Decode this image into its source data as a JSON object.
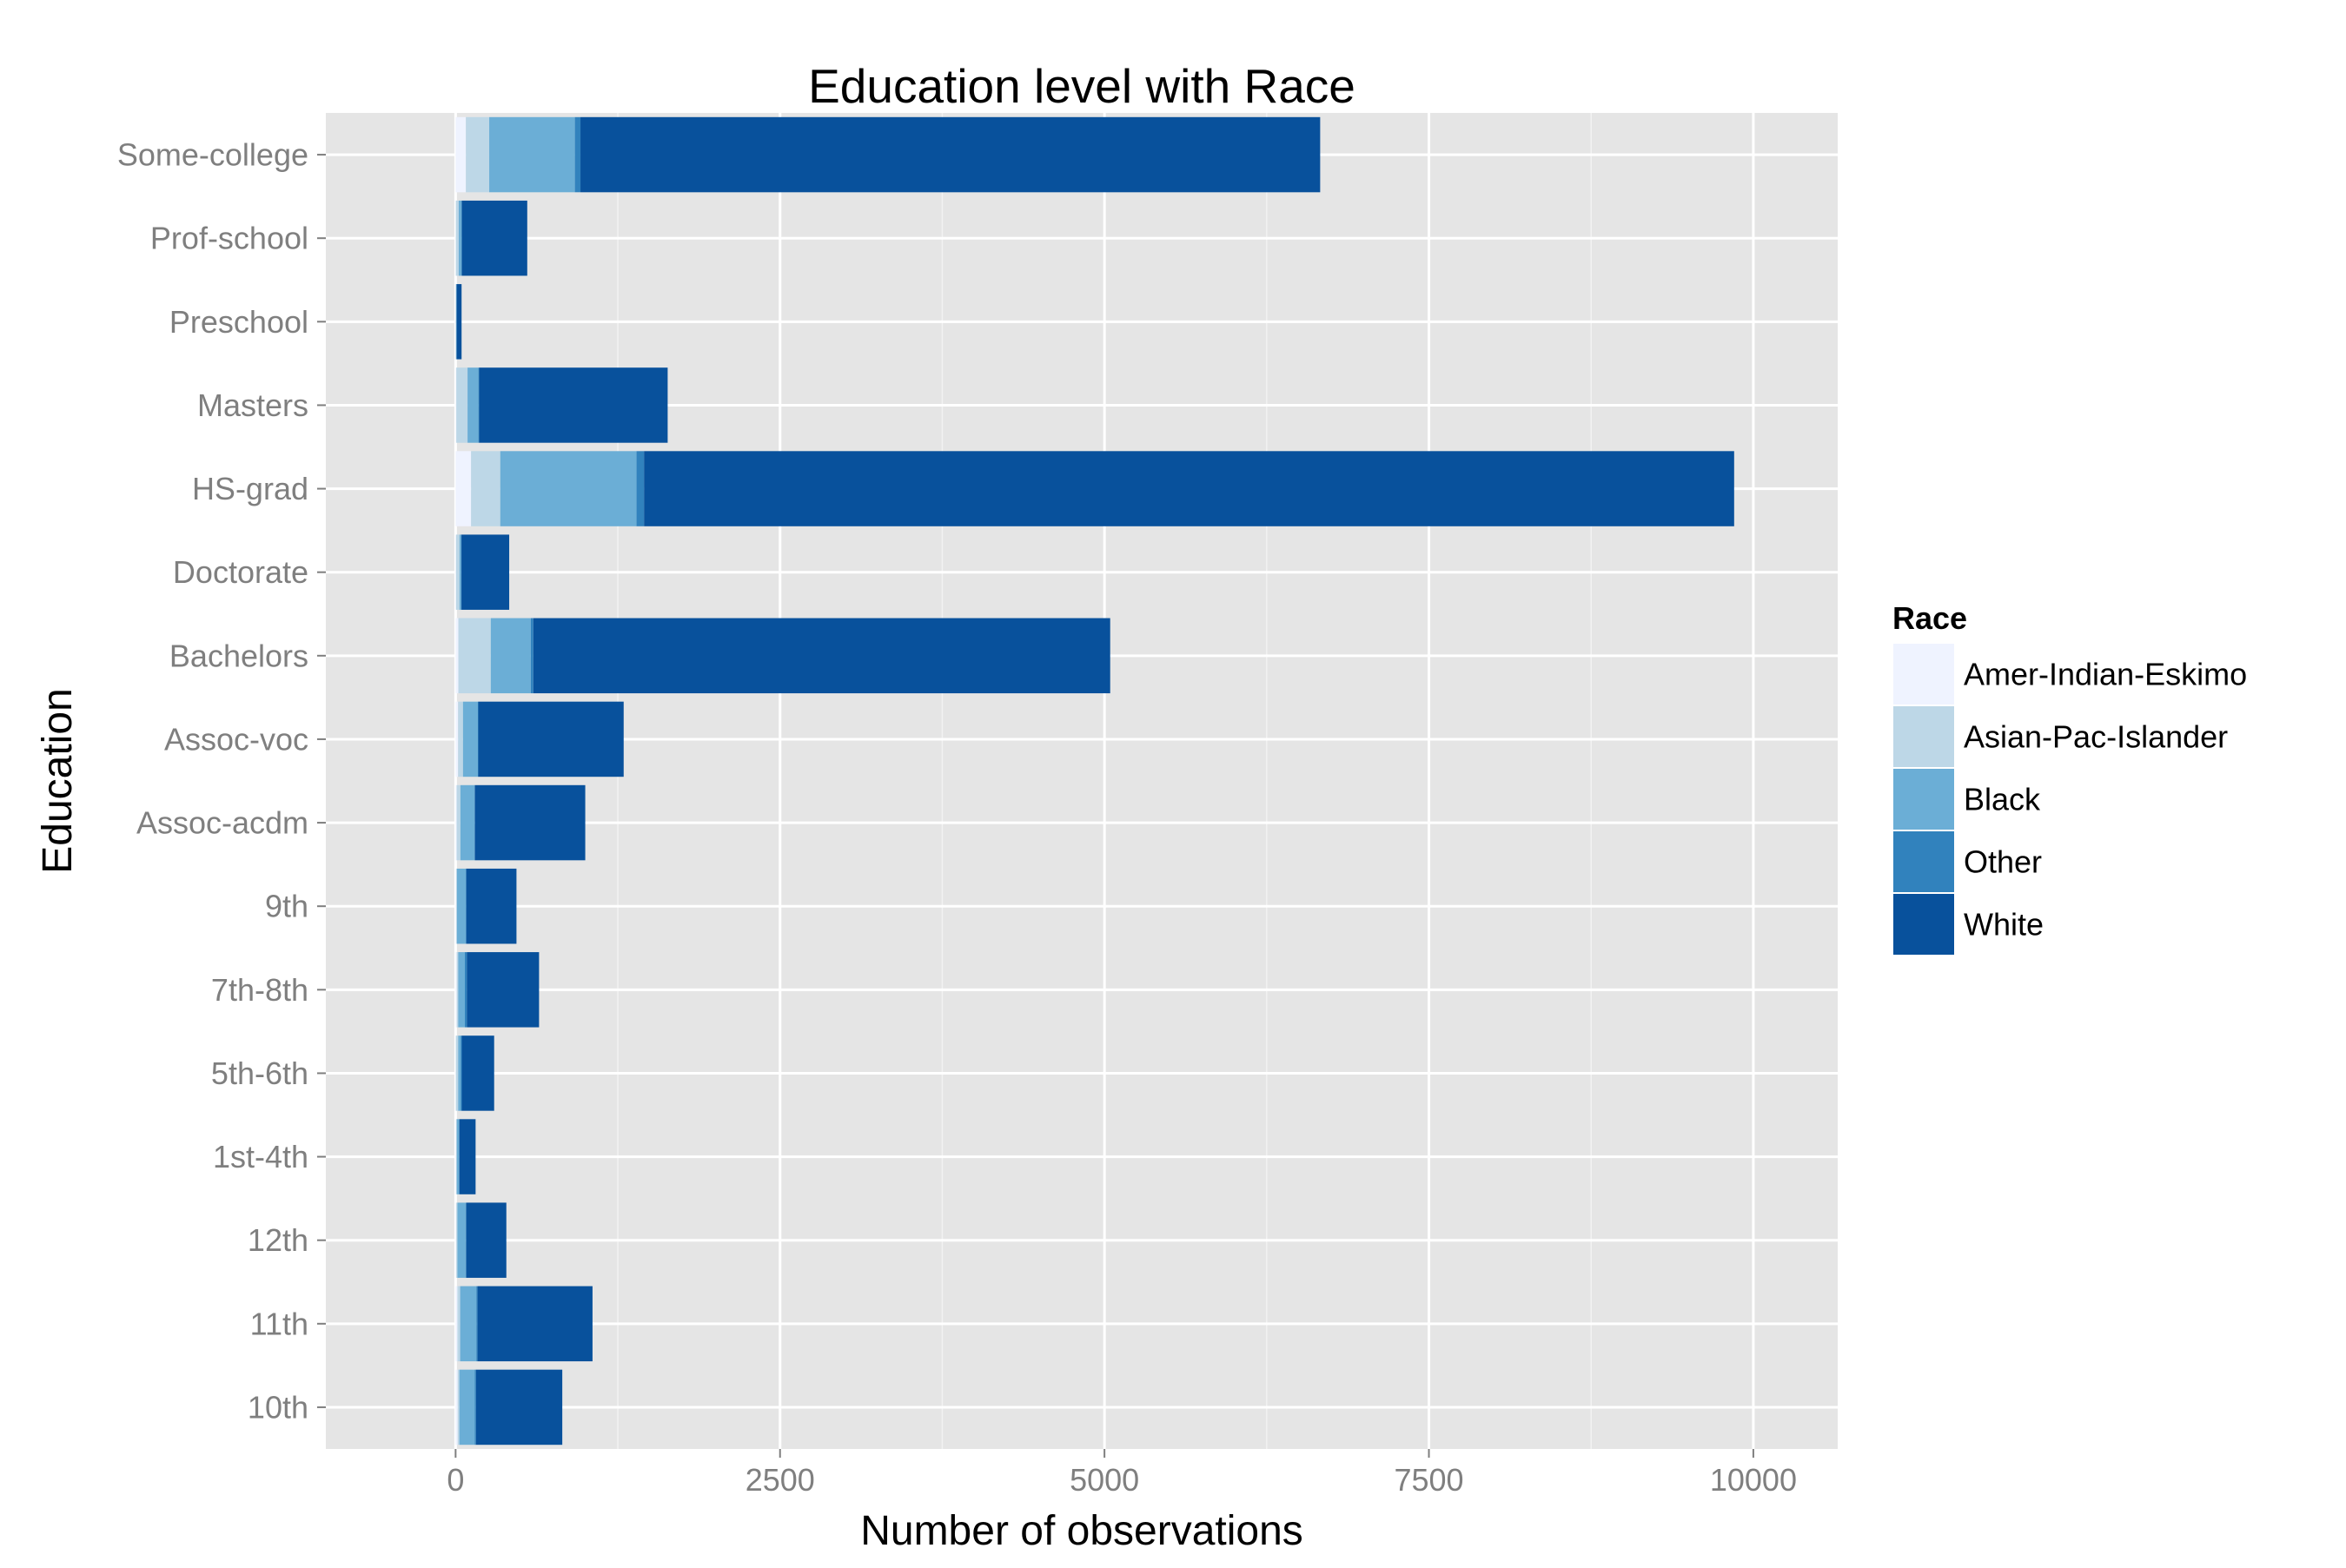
{
  "chart_data": {
    "type": "bar",
    "orientation": "horizontal",
    "stacked": true,
    "title": "Education level with Race",
    "xlabel": "Number of observations",
    "ylabel": "Education",
    "xlim": [
      -1000,
      10650
    ],
    "xticks": [
      0,
      2500,
      5000,
      7500,
      10000
    ],
    "xtick_labels": [
      "0",
      "2500",
      "5000",
      "7500",
      "10000"
    ],
    "grid": true,
    "legend_position": "right",
    "legend_title": "Race",
    "categories": [
      "10th",
      "11th",
      "12th",
      "1st-4th",
      "5th-6th",
      "7th-8th",
      "9th",
      "Assoc-acdm",
      "Assoc-voc",
      "Bachelors",
      "Doctorate",
      "HS-grad",
      "Masters",
      "Preschool",
      "Prof-school",
      "Some-college"
    ],
    "series": [
      {
        "name": "Amer-Indian-Eskimo",
        "color": "#eff3ff",
        "values": [
          16,
          14,
          5,
          4,
          2,
          9,
          5,
          8,
          19,
          21,
          3,
          119,
          5,
          0,
          2,
          79
        ]
      },
      {
        "name": "Asian-Pac-Islander",
        "color": "#bdd7e7",
        "values": [
          13,
          21,
          9,
          5,
          18,
          11,
          5,
          29,
          38,
          250,
          27,
          225,
          87,
          6,
          22,
          180
        ]
      },
      {
        "name": "Black",
        "color": "#6baed6",
        "values": [
          119,
          125,
          63,
          16,
          21,
          51,
          68,
          109,
          115,
          308,
          13,
          1050,
          84,
          0,
          20,
          660
        ]
      },
      {
        "name": "Other",
        "color": "#3182bd",
        "values": [
          9,
          9,
          6,
          5,
          7,
          16,
          5,
          3,
          3,
          20,
          2,
          58,
          6,
          2,
          5,
          43
        ]
      },
      {
        "name": "White",
        "color": "#08519c",
        "values": [
          665,
          886,
          308,
          124,
          249,
          556,
          386,
          850,
          1120,
          4445,
          368,
          8400,
          1452,
          38,
          503,
          5700
        ]
      }
    ]
  }
}
